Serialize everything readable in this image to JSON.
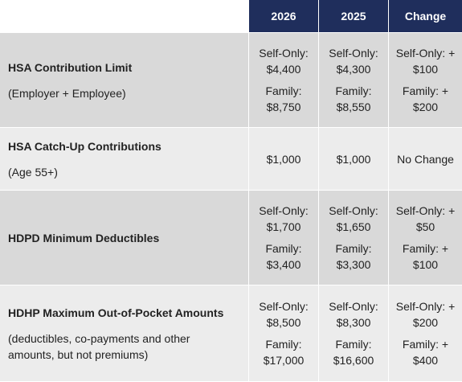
{
  "header": {
    "col_2026": "2026",
    "col_2025": "2025",
    "col_change": "Change"
  },
  "rows": [
    {
      "title": "HSA Contribution Limit",
      "subtitle": "(Employer + Employee)",
      "v2026": {
        "self_label": "Self-Only:",
        "self_value": "$4,400",
        "family_label": "Family:",
        "family_value": "$8,750"
      },
      "v2025": {
        "self_label": "Self-Only:",
        "self_value": "$4,300",
        "family_label": "Family:",
        "family_value": "$8,550"
      },
      "change": {
        "self_label": "Self-Only: +",
        "self_value": "$100",
        "family_label": "Family: +",
        "family_value": "$200"
      }
    },
    {
      "title": "HSA Catch-Up Contributions",
      "subtitle": "(Age 55+)",
      "v2026": "$1,000",
      "v2025": "$1,000",
      "change": "No Change"
    },
    {
      "title": "HDPD Minimum Deductibles",
      "v2026": {
        "self_label": "Self-Only:",
        "self_value": "$1,700",
        "family_label": "Family:",
        "family_value": "$3,400"
      },
      "v2025": {
        "self_label": "Self-Only:",
        "self_value": "$1,650",
        "family_label": "Family:",
        "family_value": "$3,300"
      },
      "change": {
        "self_label": "Self-Only: +",
        "self_value": "$50",
        "family_label": "Family: +",
        "family_value": "$100"
      }
    },
    {
      "title": "HDHP Maximum Out-of-Pocket Amounts",
      "subtitle_line1": "(deductibles, co-payments and other",
      "subtitle_line2": "amounts, but not premiums)",
      "v2026": {
        "self_label": "Self-Only:",
        "self_value": "$8,500",
        "family_label": "Family:",
        "family_value": "$17,000"
      },
      "v2025": {
        "self_label": "Self-Only:",
        "self_value": "$8,300",
        "family_label": "Family:",
        "family_value": "$16,600"
      },
      "change": {
        "self_label": "Self-Only: +",
        "self_value": "$200",
        "family_label": "Family: +",
        "family_value": "$400"
      }
    }
  ],
  "colors": {
    "header_bg": "#1f2e5c",
    "header_text": "#ffffff",
    "row_dark": "#d9d9d9",
    "row_light": "#ececec"
  }
}
